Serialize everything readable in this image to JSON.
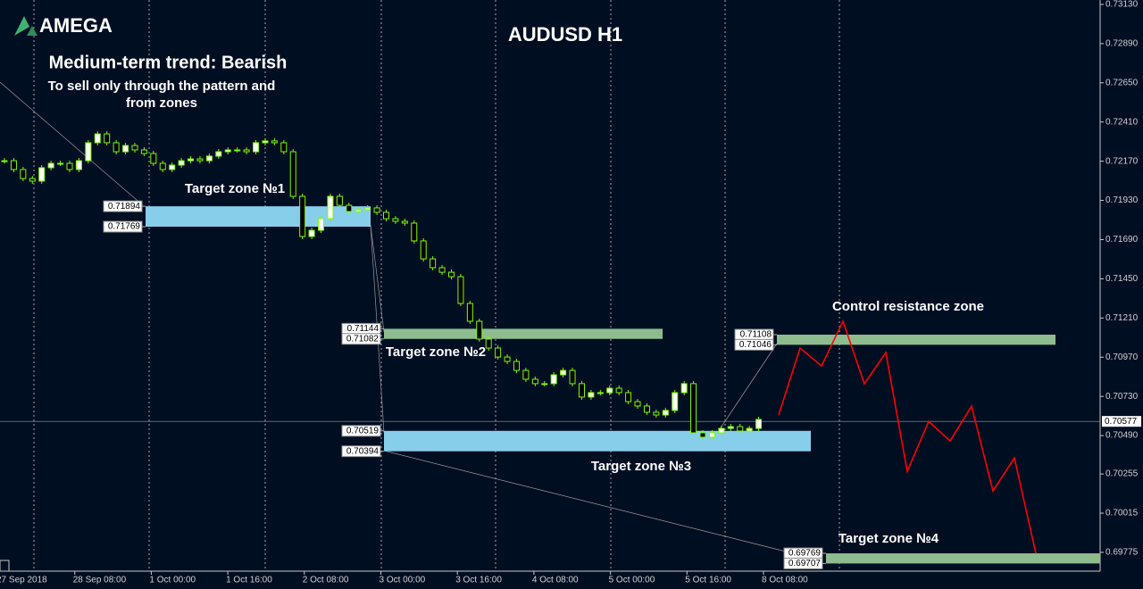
{
  "logo": "AMEGA",
  "chart_data": {
    "type": "candlestick",
    "title": "AUDUSD H1",
    "subtitle": "Medium-term trend: Bearish",
    "note_lines": [
      "To sell only through the pattern and",
      "from zones"
    ],
    "x_labels": [
      "27 Sep 2018",
      "28 Sep 08:00",
      "1 Oct 00:00",
      "1 Oct 16:00",
      "2 Oct 08:00",
      "3 Oct 00:00",
      "3 Oct 16:00",
      "4 Oct 08:00",
      "5 Oct 00:00",
      "5 Oct 16:00",
      "8 Oct 08:00"
    ],
    "ylim": [
      0.6966,
      0.73157
    ],
    "yticks": [
      {
        "value": 0.7313,
        "label": "0.73130"
      },
      {
        "value": 0.7289,
        "label": "0.72890"
      },
      {
        "value": 0.7265,
        "label": "0.72650"
      },
      {
        "value": 0.7241,
        "label": "0.72410"
      },
      {
        "value": 0.7217,
        "label": "0.72170"
      },
      {
        "value": 0.7193,
        "label": "0.71930"
      },
      {
        "value": 0.7169,
        "label": "0.71690"
      },
      {
        "value": 0.7145,
        "label": "0.71450"
      },
      {
        "value": 0.7121,
        "label": "0.71210"
      },
      {
        "value": 0.7097,
        "label": "0.70970"
      },
      {
        "value": 0.7073,
        "label": "0.70730"
      },
      {
        "value": 0.7049,
        "label": "0.70490"
      },
      {
        "value": 0.70255,
        "label": "0.70255"
      },
      {
        "value": 0.70015,
        "label": "0.70015"
      },
      {
        "value": 0.69775,
        "label": "0.69775"
      }
    ],
    "candle_color": "#7cfc00",
    "closes": [
      0.72173,
      0.72119,
      0.72064,
      0.72048,
      0.7213,
      0.72157,
      0.72157,
      0.72119,
      0.72173,
      0.72283,
      0.72337,
      0.72283,
      0.72228,
      0.72266,
      0.72239,
      0.72217,
      0.72157,
      0.72119,
      0.72146,
      0.72173,
      0.72184,
      0.72173,
      0.72201,
      0.72228,
      0.72239,
      0.72239,
      0.72228,
      0.72283,
      0.72294,
      0.72283,
      0.72228,
      0.71955,
      0.71709,
      0.71747,
      0.71818,
      0.71955,
      0.719,
      0.71862,
      0.71873,
      0.71884,
      0.71857,
      0.71818,
      0.71802,
      0.71791,
      0.71682,
      0.71572,
      0.71518,
      0.7149,
      0.71463,
      0.71299,
      0.7119,
      0.71081,
      0.71026,
      0.70971,
      0.70944,
      0.70889,
      0.70835,
      0.70808,
      0.70808,
      0.70862,
      0.70889,
      0.70808,
      0.70726,
      0.70753,
      0.70753,
      0.7078,
      0.70753,
      0.70698,
      0.70671,
      0.70633,
      0.70616,
      0.70644,
      0.70753,
      0.70808,
      0.70507,
      0.7048,
      0.70507,
      0.70534,
      0.70545,
      0.70518,
      0.70534,
      0.70589
    ],
    "current_price": 0.70577,
    "forecast": {
      "color": "#ff0000",
      "values": [
        0.70616,
        0.71026,
        0.70916,
        0.7119,
        0.70807,
        0.70998,
        0.70271,
        0.70577,
        0.70457,
        0.7067,
        0.70151,
        0.70353,
        0.69769
      ]
    },
    "zones": [
      {
        "name": "Target zone №1",
        "top": 0.71894,
        "bottom": 0.71769,
        "color": "#87ceeb"
      },
      {
        "name": "Target zone №2",
        "top": 0.71144,
        "bottom": 0.71082,
        "color": "#8fbc8f"
      },
      {
        "name": "Target zone №3",
        "top": 0.70519,
        "bottom": 0.70394,
        "color": "#87ceeb"
      },
      {
        "name": "Control resistance zone",
        "top": 0.71108,
        "bottom": 0.71046,
        "color": "#8fbc8f"
      },
      {
        "name": "Target zone №4",
        "top": 0.69769,
        "bottom": 0.69707,
        "color": "#8fbc8f"
      }
    ]
  }
}
